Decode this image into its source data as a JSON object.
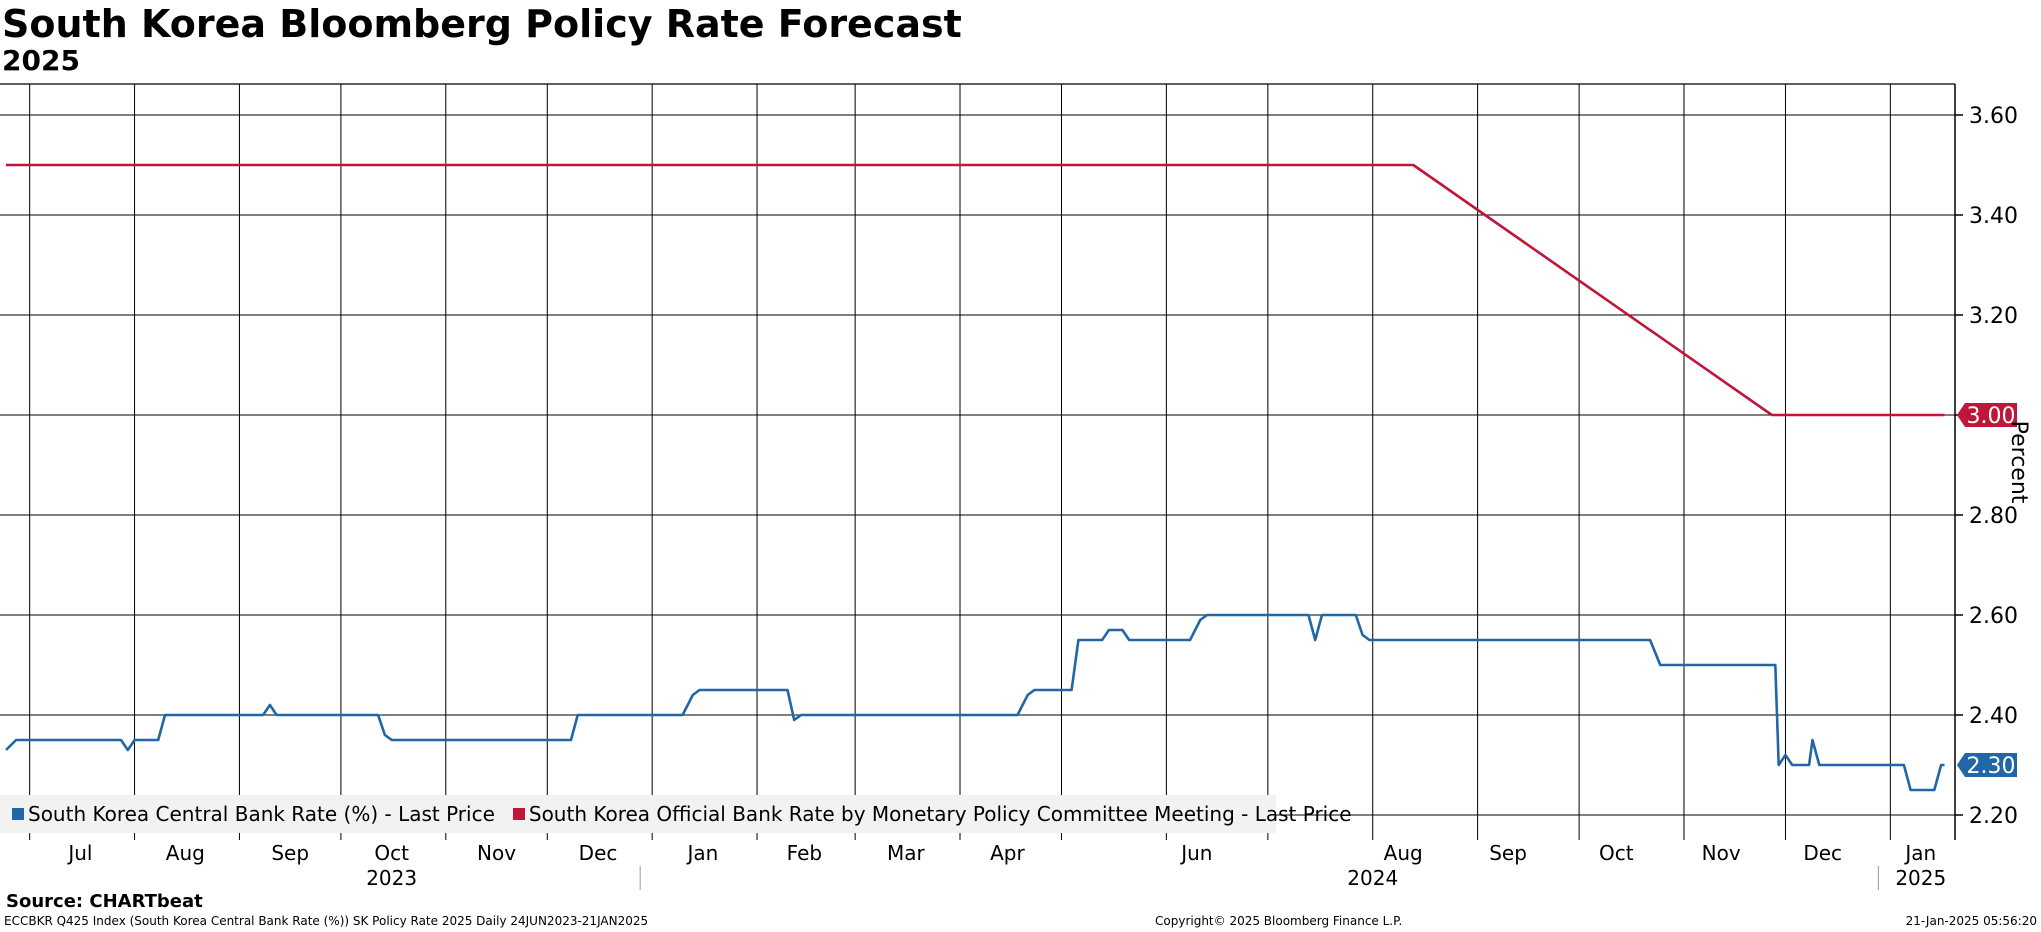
{
  "header": {
    "title": "South Korea Bloomberg Policy Rate Forecast",
    "subtitle": "2025"
  },
  "chart_data": {
    "type": "line",
    "ylabel": "Percent",
    "ylim": [
      2.15,
      3.67
    ],
    "y_ticks": [
      "3.60",
      "3.40",
      "3.20",
      "3.00",
      "2.80",
      "2.60",
      "2.40",
      "2.20"
    ],
    "x_start": "2023-06-24",
    "x_end": "2025-01-21",
    "month_labels": [
      {
        "label": "Jul",
        "date": "2023-07-16"
      },
      {
        "label": "Aug",
        "date": "2023-08-16"
      },
      {
        "label": "Sep",
        "date": "2023-09-16"
      },
      {
        "label": "Oct",
        "date": "2023-10-16"
      },
      {
        "label": "Nov",
        "date": "2023-11-16"
      },
      {
        "label": "Dec",
        "date": "2023-12-16"
      },
      {
        "label": "Jan",
        "date": "2024-01-16"
      },
      {
        "label": "Feb",
        "date": "2024-02-15"
      },
      {
        "label": "Mar",
        "date": "2024-03-16"
      },
      {
        "label": "Apr",
        "date": "2024-04-15"
      },
      {
        "label": "Jun",
        "date": "2024-06-10"
      },
      {
        "label": "Aug",
        "date": "2024-08-10"
      },
      {
        "label": "Sep",
        "date": "2024-09-10"
      },
      {
        "label": "Oct",
        "date": "2024-10-12"
      },
      {
        "label": "Nov",
        "date": "2024-11-12"
      },
      {
        "label": "Dec",
        "date": "2024-12-12"
      },
      {
        "label": "Jan",
        "date": "2025-01-10"
      }
    ],
    "year_labels": [
      {
        "label": "2023",
        "date": "2023-10-16"
      },
      {
        "label": "2024",
        "date": "2024-08-01"
      },
      {
        "label": "2025",
        "date": "2025-01-10"
      }
    ],
    "grid": true,
    "legend_placement": "bottom-left",
    "series": [
      {
        "name": "South Korea Central Bank Rate (%) - Last Price",
        "color": "#2166a5",
        "last_value": "2.30",
        "points": [
          [
            "2023-06-24",
            2.33
          ],
          [
            "2023-06-27",
            2.35
          ],
          [
            "2023-07-28",
            2.35
          ],
          [
            "2023-07-30",
            2.33
          ],
          [
            "2023-08-01",
            2.35
          ],
          [
            "2023-08-08",
            2.35
          ],
          [
            "2023-08-10",
            2.4
          ],
          [
            "2023-09-08",
            2.4
          ],
          [
            "2023-09-10",
            2.42
          ],
          [
            "2023-09-12",
            2.4
          ],
          [
            "2023-10-12",
            2.4
          ],
          [
            "2023-10-14",
            2.36
          ],
          [
            "2023-10-16",
            2.35
          ],
          [
            "2023-12-08",
            2.35
          ],
          [
            "2023-12-10",
            2.4
          ],
          [
            "2024-01-10",
            2.4
          ],
          [
            "2024-01-13",
            2.44
          ],
          [
            "2024-01-15",
            2.45
          ],
          [
            "2024-02-10",
            2.45
          ],
          [
            "2024-02-12",
            2.39
          ],
          [
            "2024-02-14",
            2.4
          ],
          [
            "2024-04-18",
            2.4
          ],
          [
            "2024-04-21",
            2.44
          ],
          [
            "2024-04-23",
            2.45
          ],
          [
            "2024-05-04",
            2.45
          ],
          [
            "2024-05-06",
            2.55
          ],
          [
            "2024-05-13",
            2.55
          ],
          [
            "2024-05-15",
            2.57
          ],
          [
            "2024-05-19",
            2.57
          ],
          [
            "2024-05-21",
            2.55
          ],
          [
            "2024-06-08",
            2.55
          ],
          [
            "2024-06-11",
            2.59
          ],
          [
            "2024-06-13",
            2.6
          ],
          [
            "2024-07-13",
            2.6
          ],
          [
            "2024-07-15",
            2.55
          ],
          [
            "2024-07-17",
            2.6
          ],
          [
            "2024-07-27",
            2.6
          ],
          [
            "2024-07-29",
            2.56
          ],
          [
            "2024-07-31",
            2.55
          ],
          [
            "2024-10-22",
            2.55
          ],
          [
            "2024-10-25",
            2.5
          ],
          [
            "2024-11-28",
            2.5
          ],
          [
            "2024-11-29",
            2.3
          ],
          [
            "2024-12-01",
            2.32
          ],
          [
            "2024-12-03",
            2.3
          ],
          [
            "2024-12-08",
            2.3
          ],
          [
            "2024-12-09",
            2.35
          ],
          [
            "2024-12-11",
            2.3
          ],
          [
            "2025-01-05",
            2.3
          ],
          [
            "2025-01-07",
            2.25
          ],
          [
            "2025-01-14",
            2.25
          ],
          [
            "2025-01-16",
            2.3
          ],
          [
            "2025-01-17",
            2.3
          ]
        ]
      },
      {
        "name": "South Korea Official Bank Rate by Monetary Policy Committee Meeting - Last Price",
        "color": "#c0163a",
        "last_value": "3.00",
        "points": [
          [
            "2023-06-24",
            3.5
          ],
          [
            "2024-08-13",
            3.5
          ],
          [
            "2024-11-27",
            3.0
          ],
          [
            "2025-01-17",
            3.0
          ]
        ]
      }
    ]
  },
  "legend": {
    "items": [
      {
        "label": "South Korea Central Bank Rate (%) - Last Price",
        "color": "#2166a5"
      },
      {
        "label": "South Korea Official Bank Rate by Monetary Policy Committee Meeting - Last Price",
        "color": "#c0163a"
      }
    ]
  },
  "footer": {
    "source": "Source: CHARTbeat",
    "left": "ECCBKR Q425 Index (South Korea Central Bank Rate (%)) SK Policy Rate 2025  Daily 24JUN2023-21JAN2025",
    "center": "Copyright© 2025 Bloomberg Finance L.P.",
    "right": "21-Jan-2025 05:56:20"
  }
}
